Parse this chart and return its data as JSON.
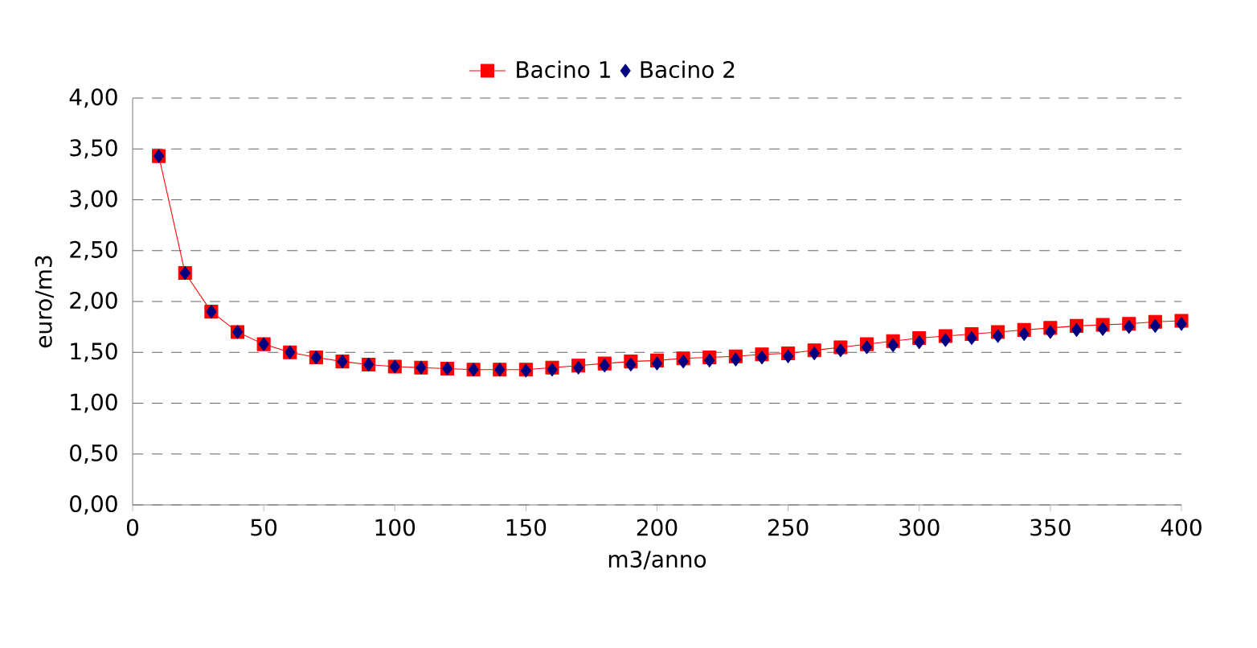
{
  "chart_data": {
    "type": "line",
    "xlabel": "m3/anno",
    "ylabel": "euro/m3",
    "x": [
      10,
      20,
      30,
      40,
      50,
      60,
      70,
      80,
      90,
      100,
      110,
      120,
      130,
      140,
      150,
      160,
      170,
      180,
      190,
      200,
      210,
      220,
      230,
      240,
      250,
      260,
      270,
      280,
      290,
      300,
      310,
      320,
      330,
      340,
      350,
      360,
      370,
      380,
      390,
      400
    ],
    "series": [
      {
        "name": "Bacino 1",
        "color": "#ff0000",
        "marker": "square",
        "line_style": "solid",
        "values": [
          3.43,
          2.28,
          1.9,
          1.7,
          1.58,
          1.5,
          1.45,
          1.41,
          1.38,
          1.36,
          1.35,
          1.34,
          1.33,
          1.33,
          1.33,
          1.35,
          1.37,
          1.39,
          1.41,
          1.42,
          1.44,
          1.45,
          1.46,
          1.48,
          1.49,
          1.52,
          1.55,
          1.58,
          1.61,
          1.64,
          1.66,
          1.68,
          1.7,
          1.72,
          1.74,
          1.76,
          1.77,
          1.78,
          1.8,
          1.81
        ]
      },
      {
        "name": "Bacino 2",
        "color": "#000080",
        "type": "scatter",
        "marker": "diamond",
        "values": [
          3.43,
          2.28,
          1.9,
          1.7,
          1.58,
          1.5,
          1.45,
          1.41,
          1.38,
          1.36,
          1.35,
          1.34,
          1.33,
          1.33,
          1.32,
          1.33,
          1.35,
          1.37,
          1.38,
          1.39,
          1.41,
          1.42,
          1.43,
          1.45,
          1.46,
          1.49,
          1.52,
          1.55,
          1.57,
          1.6,
          1.62,
          1.64,
          1.66,
          1.68,
          1.7,
          1.72,
          1.73,
          1.75,
          1.76,
          1.78
        ]
      }
    ],
    "xlim": [
      0,
      400
    ],
    "xticks": [
      0,
      50,
      100,
      150,
      200,
      250,
      300,
      350,
      400
    ],
    "ylim": [
      0,
      4
    ],
    "yticks": [
      {
        "value": 0,
        "label": "0,00"
      },
      {
        "value": 0.5,
        "label": "0,50"
      },
      {
        "value": 1,
        "label": "1,00"
      },
      {
        "value": 1.5,
        "label": "1,50"
      },
      {
        "value": 2,
        "label": "2,00"
      },
      {
        "value": 2.5,
        "label": "2,50"
      },
      {
        "value": 3,
        "label": "3,00"
      },
      {
        "value": 3.5,
        "label": "3,50"
      },
      {
        "value": 4,
        "label": "4,00"
      }
    ],
    "grid": "y",
    "legend": "top"
  }
}
